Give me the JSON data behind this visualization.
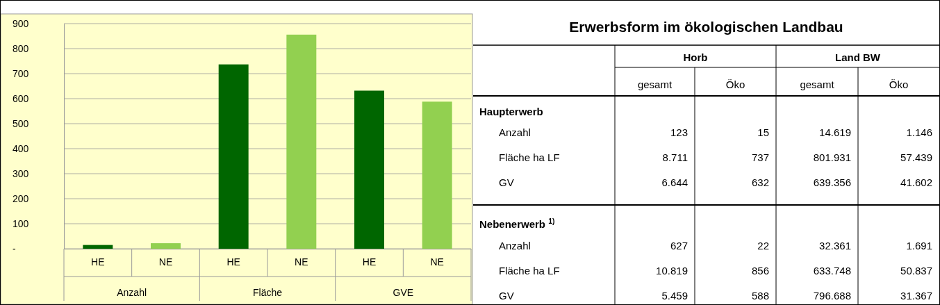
{
  "chart_data": [
    {
      "type": "bar",
      "categories": [
        "HE",
        "NE",
        "HE",
        "NE",
        "HE",
        "NE"
      ],
      "values": [
        15,
        22,
        737,
        856,
        632,
        588
      ],
      "colors": [
        "#006600",
        "#92d050",
        "#006600",
        "#92d050",
        "#006600",
        "#92d050"
      ],
      "ylim": [
        0,
        900
      ],
      "yticks": [
        {
          "value": 0,
          "label": "-"
        },
        100,
        200,
        300,
        400,
        500,
        600,
        700,
        800,
        900
      ],
      "grid": "y",
      "annotations": [
        "Anzahl",
        "Fläche",
        "GVE"
      ]
    },
    {
      "type": "other",
      "title": "Erwerbsform im ökologischen Landbau",
      "annotations": [
        "Horb",
        "Land BW",
        "gesamt",
        "Öko",
        "gesamt",
        "Öko",
        "Haupterwerb",
        "Anzahl",
        "123",
        "15",
        "14.619",
        "1.146",
        "Fläche ha LF",
        "8.711",
        "737",
        "801.931",
        "57.439",
        "GV",
        "6.644",
        "632",
        "639.356",
        "41.602",
        "Nebenerwerb $^{1)}$",
        "Anzahl",
        "627",
        "22",
        "32.361",
        "1.691",
        "Fläche ha LF",
        "10.819",
        "856",
        "633.748",
        "50.837",
        "GV",
        "5.459",
        "588",
        "796.688",
        "31.367"
      ]
    }
  ]
}
